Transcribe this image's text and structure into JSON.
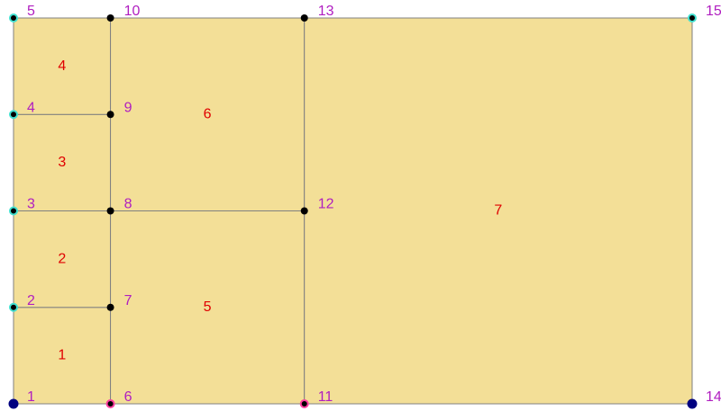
{
  "colors": {
    "cell_fill": "#f3df97",
    "cell_edge": "#808080",
    "node_label": "#b01ec0",
    "cell_label": "#e00000",
    "node_interior": "#000000",
    "node_edge_ring": "#40e0d0",
    "node_bottom_ring": "#ff3fa0",
    "node_corner": "#000080"
  },
  "nodes": [
    {
      "id": "1",
      "x": 0,
      "y": 0,
      "marker": "corner"
    },
    {
      "id": "2",
      "x": 0,
      "y": 1,
      "marker": "edge"
    },
    {
      "id": "3",
      "x": 0,
      "y": 2,
      "marker": "edge"
    },
    {
      "id": "4",
      "x": 0,
      "y": 3,
      "marker": "edge"
    },
    {
      "id": "5",
      "x": 0,
      "y": 4,
      "marker": "edge"
    },
    {
      "id": "6",
      "x": 1,
      "y": 0,
      "marker": "bottom"
    },
    {
      "id": "7",
      "x": 1,
      "y": 1,
      "marker": "interior"
    },
    {
      "id": "8",
      "x": 1,
      "y": 2,
      "marker": "interior"
    },
    {
      "id": "9",
      "x": 1,
      "y": 3,
      "marker": "interior"
    },
    {
      "id": "10",
      "x": 1,
      "y": 4,
      "marker": "interior"
    },
    {
      "id": "11",
      "x": 3,
      "y": 0,
      "marker": "bottom"
    },
    {
      "id": "12",
      "x": 3,
      "y": 2,
      "marker": "interior"
    },
    {
      "id": "13",
      "x": 3,
      "y": 4,
      "marker": "interior"
    },
    {
      "id": "14",
      "x": 7,
      "y": 0,
      "marker": "corner"
    },
    {
      "id": "15",
      "x": 7,
      "y": 4,
      "marker": "edge"
    }
  ],
  "cells": [
    {
      "id": "1",
      "nodes": [
        "1",
        "6",
        "7",
        "2"
      ]
    },
    {
      "id": "2",
      "nodes": [
        "2",
        "7",
        "8",
        "3"
      ]
    },
    {
      "id": "3",
      "nodes": [
        "3",
        "8",
        "9",
        "4"
      ]
    },
    {
      "id": "4",
      "nodes": [
        "4",
        "9",
        "10",
        "5"
      ]
    },
    {
      "id": "5",
      "nodes": [
        "6",
        "11",
        "12",
        "8"
      ]
    },
    {
      "id": "6",
      "nodes": [
        "8",
        "12",
        "13",
        "10"
      ]
    },
    {
      "id": "7",
      "nodes": [
        "11",
        "14",
        "15",
        "13"
      ]
    }
  ]
}
